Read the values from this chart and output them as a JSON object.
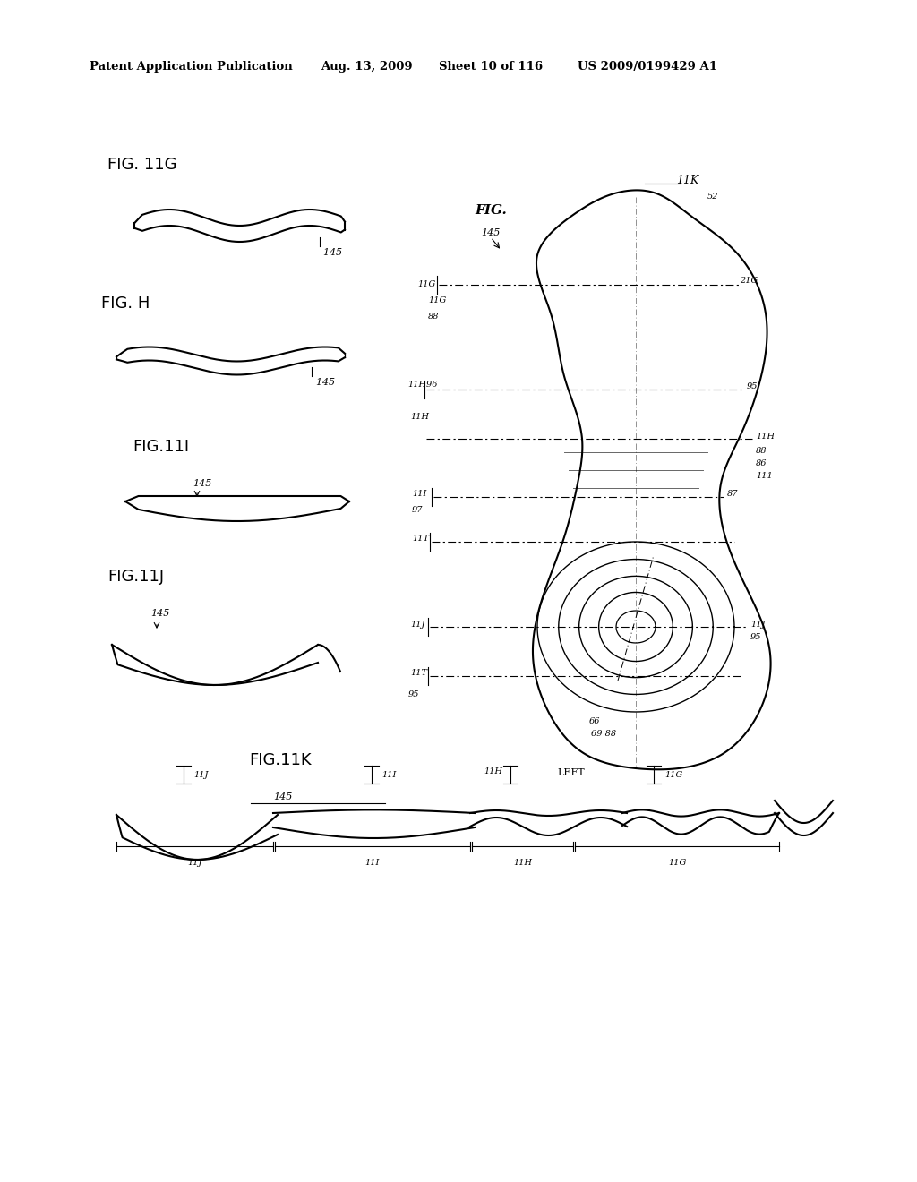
{
  "bg_color": "#ffffff",
  "header_text": "Patent Application Publication",
  "header_date": "Aug. 13, 2009",
  "header_sheet": "Sheet 10 of 116",
  "header_patent": "US 2009/0199429 A1"
}
